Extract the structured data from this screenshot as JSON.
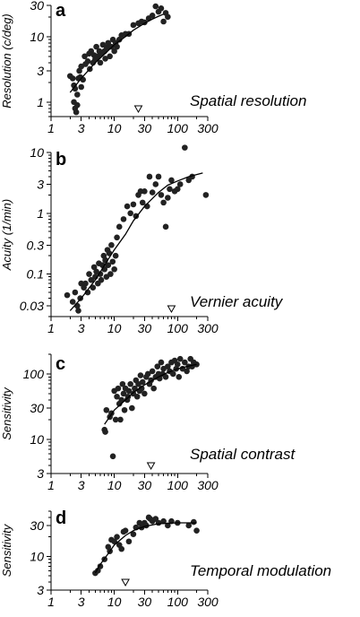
{
  "chart_data": [
    {
      "type": "scatter",
      "panel_label": "a",
      "ylabel": "Resolution (c/deg)",
      "annotation": "Spatial resolution",
      "x_scale": "log",
      "y_scale": "log",
      "xlim": [
        1,
        300
      ],
      "ylim": [
        0.6,
        30
      ],
      "x_ticks": [
        1,
        3,
        10,
        30,
        100,
        300
      ],
      "x_tick_labels": [
        "1",
        "3",
        "10",
        "30",
        "100",
        "300"
      ],
      "y_ticks": [
        1,
        3,
        10,
        30
      ],
      "y_tick_labels": [
        "1",
        "3",
        "10",
        "30"
      ],
      "points": [
        [
          2.0,
          2.5
        ],
        [
          2.2,
          2.3
        ],
        [
          2.3,
          1.8
        ],
        [
          2.3,
          1.0
        ],
        [
          2.4,
          0.8
        ],
        [
          2.4,
          1.6
        ],
        [
          2.5,
          0.7
        ],
        [
          2.6,
          1.3
        ],
        [
          2.6,
          0.9
        ],
        [
          2.7,
          2.3
        ],
        [
          2.8,
          3.0
        ],
        [
          2.9,
          2.4
        ],
        [
          3.0,
          3.5
        ],
        [
          3.0,
          1.7
        ],
        [
          3.2,
          2.2
        ],
        [
          3.4,
          5.0
        ],
        [
          3.5,
          3.8
        ],
        [
          3.8,
          4.2
        ],
        [
          4.0,
          5.5
        ],
        [
          4.1,
          3.2
        ],
        [
          4.3,
          6.0
        ],
        [
          4.6,
          4.0
        ],
        [
          4.8,
          5.2
        ],
        [
          5.0,
          4.5
        ],
        [
          5.2,
          7.0
        ],
        [
          5.5,
          5.0
        ],
        [
          5.8,
          6.0
        ],
        [
          6.0,
          4.0
        ],
        [
          6.3,
          5.5
        ],
        [
          6.6,
          7.5
        ],
        [
          7.0,
          6.0
        ],
        [
          7.2,
          4.6
        ],
        [
          7.6,
          6.8
        ],
        [
          8.0,
          8.0
        ],
        [
          8.5,
          5.0
        ],
        [
          9.0,
          7.0
        ],
        [
          9.5,
          9.0
        ],
        [
          10,
          6.0
        ],
        [
          10.5,
          8.0
        ],
        [
          11,
          7.0
        ],
        [
          12,
          9.0
        ],
        [
          13,
          10.5
        ],
        [
          15,
          11
        ],
        [
          17,
          11
        ],
        [
          20,
          15
        ],
        [
          24,
          16
        ],
        [
          27,
          17
        ],
        [
          30,
          16.5
        ],
        [
          35,
          19
        ],
        [
          40,
          21
        ],
        [
          45,
          29
        ],
        [
          50,
          24
        ],
        [
          55,
          27
        ],
        [
          60,
          17
        ],
        [
          65,
          23
        ],
        [
          70,
          20
        ]
      ],
      "fit_curve": [
        [
          2,
          1.4
        ],
        [
          3,
          2.3
        ],
        [
          5,
          4.0
        ],
        [
          7,
          5.4
        ],
        [
          10,
          7.5
        ],
        [
          15,
          10
        ],
        [
          20,
          12.5
        ],
        [
          30,
          16
        ],
        [
          40,
          18.5
        ],
        [
          50,
          20.5
        ],
        [
          60,
          22
        ]
      ],
      "marker_x": 24
    },
    {
      "type": "scatter",
      "panel_label": "b",
      "ylabel": "Acuity (1/min)",
      "annotation": "Vernier acuity",
      "x_scale": "log",
      "y_scale": "log",
      "xlim": [
        1,
        300
      ],
      "ylim": [
        0.02,
        10
      ],
      "x_ticks": [
        1,
        3,
        10,
        30,
        100,
        300
      ],
      "x_tick_labels": [
        "1",
        "3",
        "10",
        "30",
        "100",
        "300"
      ],
      "y_ticks": [
        0.03,
        0.1,
        0.3,
        1,
        3,
        10
      ],
      "y_tick_labels": [
        "0.03",
        "0.1",
        "0.3",
        "1",
        "3",
        "10"
      ],
      "points": [
        [
          1.8,
          0.045
        ],
        [
          2.2,
          0.035
        ],
        [
          2.4,
          0.05
        ],
        [
          2.6,
          0.03
        ],
        [
          2.7,
          0.025
        ],
        [
          2.9,
          0.04
        ],
        [
          3.0,
          0.07
        ],
        [
          3.3,
          0.06
        ],
        [
          3.5,
          0.07
        ],
        [
          3.8,
          0.05
        ],
        [
          4.0,
          0.1
        ],
        [
          4.3,
          0.08
        ],
        [
          4.6,
          0.06
        ],
        [
          4.8,
          0.13
        ],
        [
          5.0,
          0.09
        ],
        [
          5.2,
          0.11
        ],
        [
          5.5,
          0.07
        ],
        [
          5.7,
          0.15
        ],
        [
          6.0,
          0.1
        ],
        [
          6.2,
          0.08
        ],
        [
          6.5,
          0.14
        ],
        [
          6.8,
          0.2
        ],
        [
          7.0,
          0.12
        ],
        [
          7.2,
          0.17
        ],
        [
          7.5,
          0.09
        ],
        [
          7.8,
          0.25
        ],
        [
          8.0,
          0.14
        ],
        [
          8.3,
          0.22
        ],
        [
          8.7,
          0.1
        ],
        [
          9.0,
          0.3
        ],
        [
          9.4,
          0.16
        ],
        [
          10,
          0.12
        ],
        [
          10.5,
          0.2
        ],
        [
          11,
          0.4
        ],
        [
          12,
          0.6
        ],
        [
          14,
          0.8
        ],
        [
          16,
          1.3
        ],
        [
          18,
          1.0
        ],
        [
          20,
          1.4
        ],
        [
          22,
          0.9
        ],
        [
          24,
          2.0
        ],
        [
          26,
          2.3
        ],
        [
          28,
          1.5
        ],
        [
          30,
          2.3
        ],
        [
          33,
          1.3
        ],
        [
          36,
          4.0
        ],
        [
          40,
          2.2
        ],
        [
          45,
          3.0
        ],
        [
          50,
          4.0
        ],
        [
          55,
          2.0
        ],
        [
          60,
          1.5
        ],
        [
          65,
          0.6
        ],
        [
          70,
          1.8
        ],
        [
          75,
          2.5
        ],
        [
          80,
          3.5
        ],
        [
          90,
          2.3
        ],
        [
          100,
          2.5
        ],
        [
          110,
          3.0
        ],
        [
          130,
          12
        ],
        [
          150,
          3.5
        ],
        [
          170,
          4.0
        ],
        [
          280,
          2.0
        ]
      ],
      "fit_curve": [
        [
          2,
          0.025
        ],
        [
          3,
          0.04
        ],
        [
          5,
          0.08
        ],
        [
          7,
          0.14
        ],
        [
          10,
          0.25
        ],
        [
          15,
          0.45
        ],
        [
          20,
          0.75
        ],
        [
          30,
          1.3
        ],
        [
          50,
          2.2
        ],
        [
          70,
          2.9
        ],
        [
          100,
          3.4
        ],
        [
          150,
          4.0
        ],
        [
          250,
          4.6
        ]
      ],
      "marker_x": 80
    },
    {
      "type": "scatter",
      "panel_label": "c",
      "ylabel": "Sensitivity",
      "annotation": "Spatial contrast",
      "x_scale": "log",
      "y_scale": "log",
      "xlim": [
        1,
        300
      ],
      "ylim": [
        3,
        200
      ],
      "x_ticks": [
        1,
        3,
        10,
        30,
        100,
        300
      ],
      "x_tick_labels": [
        "1",
        "3",
        "10",
        "30",
        "100",
        "300"
      ],
      "y_ticks": [
        3,
        10,
        30,
        100
      ],
      "y_tick_labels": [
        "3",
        "10",
        "30",
        "100"
      ],
      "points": [
        [
          7,
          14
        ],
        [
          7.2,
          13
        ],
        [
          7.5,
          28
        ],
        [
          8.5,
          22
        ],
        [
          9,
          25
        ],
        [
          9.5,
          5.5
        ],
        [
          10,
          55
        ],
        [
          10.5,
          20
        ],
        [
          11,
          45
        ],
        [
          11.5,
          60
        ],
        [
          12,
          35
        ],
        [
          12.5,
          20
        ],
        [
          13,
          40
        ],
        [
          13.5,
          70
        ],
        [
          14,
          50
        ],
        [
          14.5,
          28
        ],
        [
          15,
          60
        ],
        [
          16,
          40
        ],
        [
          16.5,
          45
        ],
        [
          17,
          55
        ],
        [
          18,
          70
        ],
        [
          19,
          30
        ],
        [
          20,
          50
        ],
        [
          21,
          60
        ],
        [
          22,
          80
        ],
        [
          23,
          45
        ],
        [
          24,
          70
        ],
        [
          25,
          55
        ],
        [
          26,
          95
        ],
        [
          27,
          60
        ],
        [
          28,
          75
        ],
        [
          30,
          50
        ],
        [
          32,
          90
        ],
        [
          34,
          100
        ],
        [
          36,
          70
        ],
        [
          38,
          80
        ],
        [
          40,
          110
        ],
        [
          42,
          60
        ],
        [
          45,
          90
        ],
        [
          48,
          130
        ],
        [
          50,
          100
        ],
        [
          52,
          85
        ],
        [
          55,
          150
        ],
        [
          58,
          100
        ],
        [
          60,
          120
        ],
        [
          65,
          90
        ],
        [
          70,
          130
        ],
        [
          75,
          110
        ],
        [
          80,
          150
        ],
        [
          85,
          100
        ],
        [
          90,
          160
        ],
        [
          95,
          120
        ],
        [
          100,
          140
        ],
        [
          105,
          90
        ],
        [
          110,
          170
        ],
        [
          120,
          120
        ],
        [
          130,
          150
        ],
        [
          140,
          110
        ],
        [
          150,
          130
        ],
        [
          160,
          170
        ],
        [
          170,
          130
        ],
        [
          180,
          150
        ],
        [
          200,
          140
        ]
      ],
      "fit_curve": [
        [
          7,
          17
        ],
        [
          10,
          28
        ],
        [
          15,
          40
        ],
        [
          20,
          52
        ],
        [
          30,
          68
        ],
        [
          50,
          90
        ],
        [
          70,
          105
        ],
        [
          100,
          120
        ],
        [
          150,
          132
        ],
        [
          200,
          140
        ]
      ],
      "marker_x": 38
    },
    {
      "type": "scatter",
      "panel_label": "d",
      "ylabel": "Sensitivity",
      "annotation": "Temporal modulation",
      "x_scale": "log",
      "y_scale": "log",
      "xlim": [
        1,
        300
      ],
      "ylim": [
        3,
        50
      ],
      "x_ticks": [
        1,
        3,
        10,
        30,
        100,
        300
      ],
      "x_tick_labels": [
        "1",
        "3",
        "10",
        "30",
        "100",
        "300"
      ],
      "y_ticks": [
        3,
        10,
        30
      ],
      "y_tick_labels": [
        "3",
        "10",
        "30"
      ],
      "points": [
        [
          5,
          5.5
        ],
        [
          5.5,
          6.0
        ],
        [
          6,
          7
        ],
        [
          7,
          9
        ],
        [
          8,
          14
        ],
        [
          8.5,
          12
        ],
        [
          9,
          18
        ],
        [
          10,
          17
        ],
        [
          11,
          20
        ],
        [
          12,
          15
        ],
        [
          13,
          13
        ],
        [
          14,
          24
        ],
        [
          15,
          25
        ],
        [
          17,
          17
        ],
        [
          20,
          22
        ],
        [
          22,
          28
        ],
        [
          25,
          33
        ],
        [
          27,
          28
        ],
        [
          30,
          33
        ],
        [
          32,
          30
        ],
        [
          35,
          40
        ],
        [
          37,
          38
        ],
        [
          40,
          35
        ],
        [
          45,
          38
        ],
        [
          50,
          33
        ],
        [
          60,
          35
        ],
        [
          70,
          30
        ],
        [
          80,
          35
        ],
        [
          100,
          33
        ],
        [
          150,
          30
        ],
        [
          180,
          34
        ],
        [
          200,
          25
        ]
      ],
      "fit_curve": [
        [
          5,
          5.5
        ],
        [
          6,
          7.5
        ],
        [
          8,
          11
        ],
        [
          10,
          15
        ],
        [
          15,
          21
        ],
        [
          20,
          25
        ],
        [
          30,
          29
        ],
        [
          50,
          32
        ],
        [
          100,
          33
        ],
        [
          200,
          33
        ]
      ],
      "marker_x": 15
    }
  ]
}
